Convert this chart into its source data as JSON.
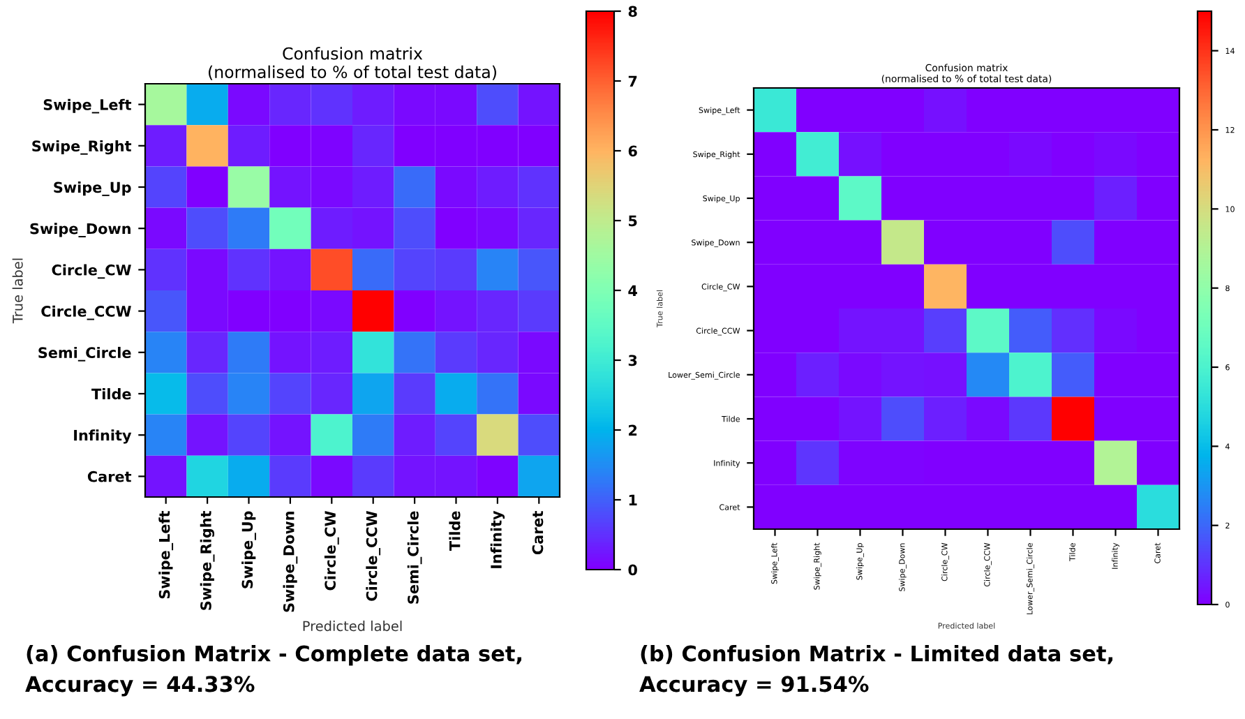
{
  "chart_data": [
    {
      "type": "heatmap",
      "title": "Confusion matrix",
      "subtitle": "(normalised to % of total test data)",
      "xlabel": "Predicted label",
      "ylabel": "True label",
      "categories": [
        "Swipe_Left",
        "Swipe_Right",
        "Swipe_Up",
        "Swipe_Down",
        "Circle_CW",
        "Circle_CCW",
        "Semi_Circle",
        "Tilde",
        "Infinity",
        "Caret"
      ],
      "y_categories": [
        "Swipe_Left",
        "Swipe_Right",
        "Swipe_Up",
        "Swipe_Down",
        "Circle_CW",
        "Circle_CCW",
        "Semi_Circle",
        "Tilde",
        "Infinity",
        "Caret"
      ],
      "cells": [
        [
          4.6,
          1.9,
          0.1,
          0.4,
          0.5,
          0.3,
          0.1,
          0.1,
          0.8,
          0.2
        ],
        [
          0.3,
          6.0,
          0.3,
          0,
          0.05,
          0.4,
          0,
          0,
          0,
          0
        ],
        [
          0.7,
          0,
          4.4,
          0.2,
          0.1,
          0.3,
          1.1,
          0.1,
          0.3,
          0.5
        ],
        [
          0.1,
          0.8,
          1.3,
          3.8,
          0.3,
          0.2,
          0.8,
          0,
          0.1,
          0.4
        ],
        [
          0.5,
          0.1,
          0.5,
          0.2,
          7.2,
          1.1,
          0.7,
          0.6,
          1.4,
          0.9
        ],
        [
          0.9,
          0.1,
          0,
          0,
          0.1,
          8.0,
          0,
          0.2,
          0.4,
          0.6
        ],
        [
          1.4,
          0.4,
          1.3,
          0.2,
          0.3,
          2.8,
          1.2,
          0.6,
          0.4,
          0.1
        ],
        [
          2.1,
          0.8,
          1.4,
          0.7,
          0.4,
          1.8,
          0.6,
          1.9,
          1.2,
          0.1
        ],
        [
          1.4,
          0.2,
          0.7,
          0.2,
          3.2,
          1.3,
          0.3,
          0.7,
          5.4,
          0.8
        ],
        [
          0.2,
          2.5,
          1.9,
          0.6,
          0.1,
          0.6,
          0.2,
          0.2,
          0.05,
          1.8
        ]
      ],
      "clim": [
        0,
        8
      ],
      "cticks": [
        0,
        1,
        2,
        3,
        4,
        5,
        6,
        7,
        8
      ],
      "annotations": [
        "(a) Confusion Matrix - Complete data set,",
        "Accuracy = 44.33%"
      ]
    },
    {
      "type": "heatmap",
      "title": "Confusion matrix",
      "subtitle": "(normalised to % of total test data)",
      "xlabel": "Predicted label",
      "ylabel": "True label",
      "categories": [
        "Swipe_Left",
        "Swipe_Right",
        "Swipe_Up",
        "Swipe_Down",
        "Circle_CW",
        "Circle_CCW",
        "Lower_Semi_Circle",
        "Tilde",
        "Infinity",
        "Caret"
      ],
      "y_categories": [
        "Swipe_Left",
        "Swipe_Right",
        "Swipe_Up",
        "Swipe_Down",
        "Circle_CW",
        "Circle_CCW",
        "Lower_Semi_Circle",
        "Tilde",
        "Infinity",
        "Caret"
      ],
      "cells": [
        [
          5.5,
          0,
          0,
          0,
          0.3,
          0,
          0,
          0,
          0,
          0
        ],
        [
          0,
          5.7,
          0.3,
          0,
          0,
          0,
          0.2,
          0,
          0.2,
          0
        ],
        [
          0,
          0,
          6.5,
          0,
          0,
          0,
          0,
          0,
          0.6,
          0
        ],
        [
          0,
          0,
          0,
          9.5,
          0,
          0,
          0,
          1.5,
          0,
          0
        ],
        [
          0,
          0,
          0,
          0,
          11.2,
          0,
          0,
          0,
          0,
          0
        ],
        [
          0,
          0,
          0.4,
          0.4,
          1.2,
          6.5,
          1.8,
          0.9,
          0.2,
          0
        ],
        [
          0,
          0.6,
          0.2,
          0.4,
          0.3,
          2.7,
          6.0,
          1.8,
          0,
          0
        ],
        [
          0,
          0,
          0.4,
          1.5,
          0.6,
          0.2,
          1.1,
          15.0,
          0,
          0
        ],
        [
          0,
          1.0,
          0.1,
          0.1,
          0,
          0,
          0,
          0,
          9.0,
          0
        ],
        [
          0,
          0,
          0,
          0,
          0,
          0,
          0,
          0,
          0,
          5.0
        ]
      ],
      "clim": [
        0,
        15
      ],
      "cticks": [
        0,
        2,
        4,
        6,
        8,
        10,
        12,
        14
      ],
      "annotations": [
        "(b) Confusion Matrix - Limited data set,",
        "Accuracy = 91.54%"
      ]
    }
  ]
}
